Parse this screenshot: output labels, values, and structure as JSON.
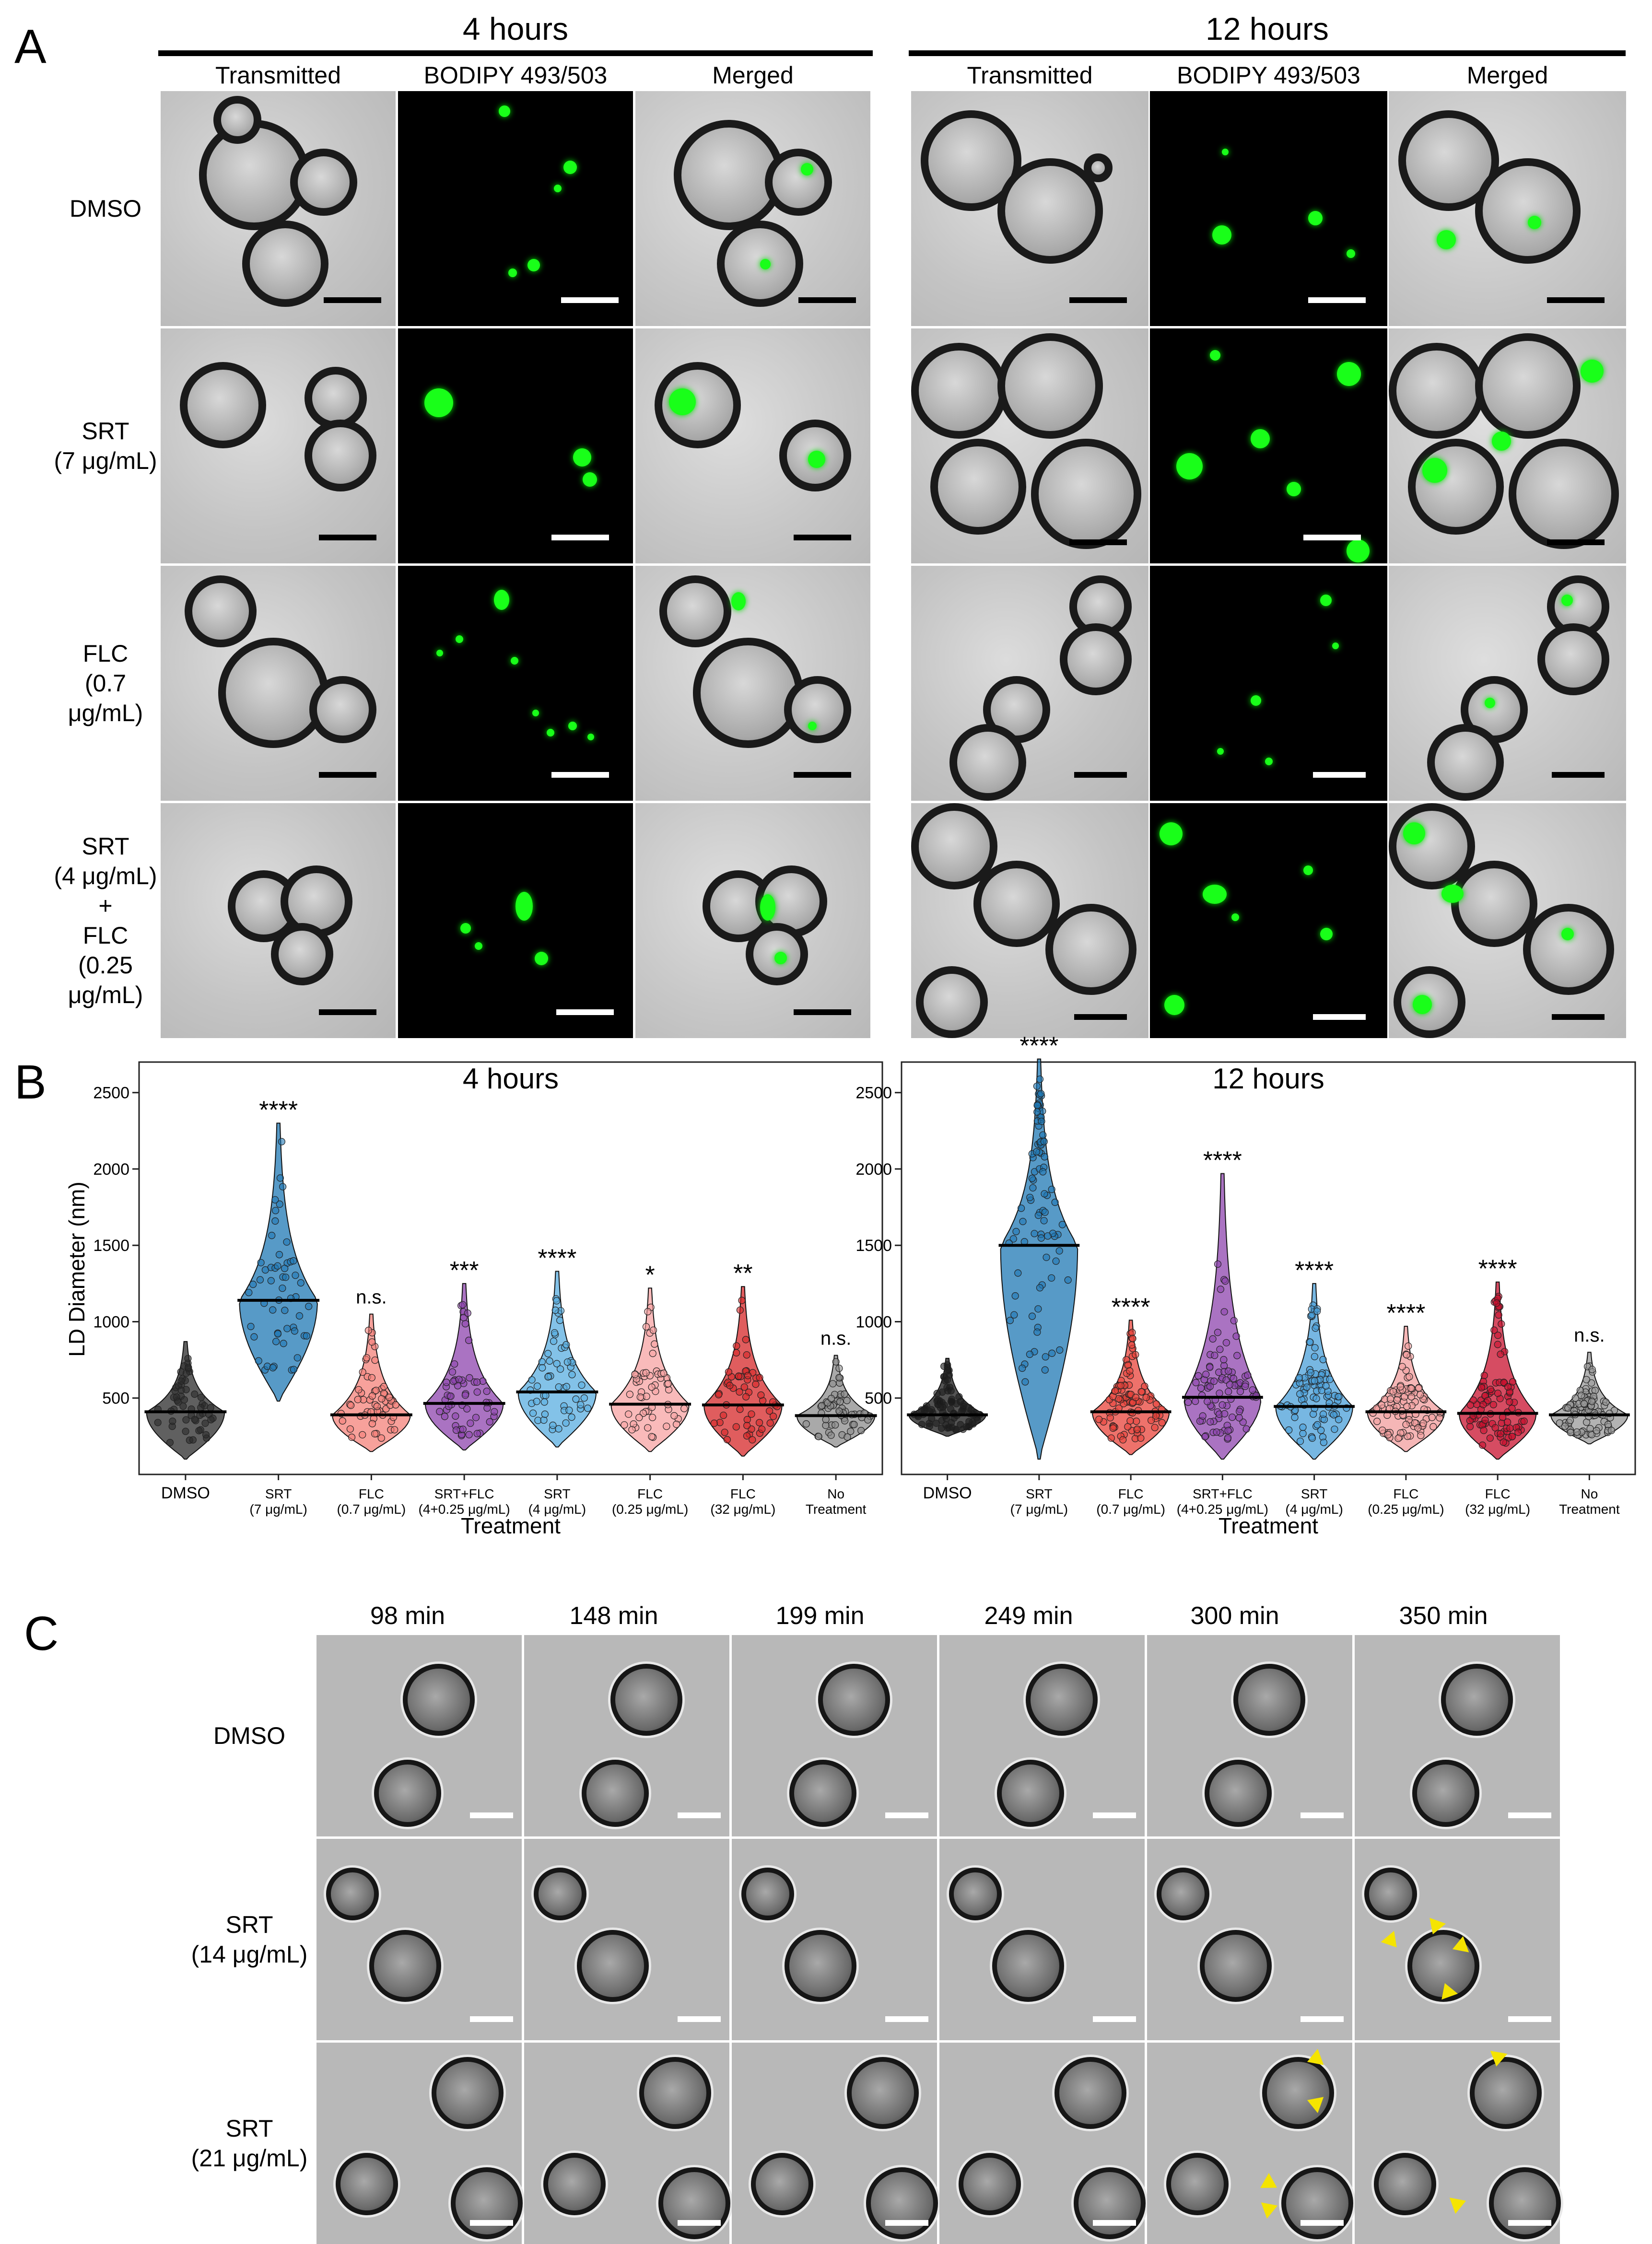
{
  "panel_a": {
    "letter": "A",
    "groups": [
      {
        "time": "4 hours",
        "channels": [
          "Transmitted",
          "BODIPY 493/503",
          "Merged"
        ]
      },
      {
        "time": "12 hours",
        "channels": [
          "Transmitted",
          "BODIPY 493/503",
          "Merged"
        ]
      }
    ],
    "rows": [
      {
        "label_lines": [
          "DMSO"
        ]
      },
      {
        "label_lines": [
          "SRT",
          "(7 μg/mL)"
        ]
      },
      {
        "label_lines": [
          "FLC",
          "(0.7 μg/mL)"
        ]
      },
      {
        "label_lines": [
          "SRT",
          "(4 μg/mL)",
          "+",
          "FLC",
          "(0.25 μg/mL)"
        ]
      }
    ]
  },
  "panel_b": {
    "letter": "B",
    "significance_4h": [
      "",
      "****",
      "n.s.",
      "***",
      "****",
      "*",
      "**",
      "n.s."
    ],
    "significance_12h": [
      "",
      "****",
      "****",
      "****",
      "****",
      "****",
      "****",
      "n.s."
    ]
  },
  "chart_data": [
    {
      "type": "violin",
      "title": "4 hours",
      "xlabel": "Treatment",
      "ylabel": "LD Diameter (nm)",
      "ylim": [
        0,
        2700
      ],
      "yticks": [
        500,
        1000,
        1500,
        2000,
        2500
      ],
      "categories": [
        "DMSO",
        "SRT (7 μg/mL)",
        "FLC (0.7 μg/mL)",
        "SRT+FLC (4+0.25 μg/mL)",
        "SRT (4 μg/mL)",
        "FLC (0.25 μg/mL)",
        "FLC (32 μg/mL)",
        "No Treatment"
      ],
      "category_lines": [
        [
          "DMSO"
        ],
        [
          "SRT",
          "(7 μg/mL)"
        ],
        [
          "FLC",
          "(0.7 μg/mL)"
        ],
        [
          "SRT+FLC",
          "(4+0.25 μg/mL)"
        ],
        [
          "SRT",
          "(4 μg/mL)"
        ],
        [
          "FLC",
          "(0.25 μg/mL)"
        ],
        [
          "FLC",
          "(32 μg/mL)"
        ],
        [
          "No",
          "Treatment"
        ]
      ],
      "medians": [
        410,
        1140,
        390,
        465,
        540,
        460,
        455,
        385
      ],
      "min": [
        100,
        480,
        150,
        160,
        180,
        150,
        120,
        180
      ],
      "max": [
        870,
        2300,
        1050,
        1250,
        1330,
        1220,
        1230,
        780
      ],
      "colors": [
        "#2b2b2b",
        "#1f78b4",
        "#f4817a",
        "#8e44ad",
        "#5aaee0",
        "#f7a3a3",
        "#d62728",
        "#8c8c8c"
      ]
    },
    {
      "type": "violin",
      "title": "12 hours",
      "xlabel": "Treatment",
      "ylabel": "",
      "ylim": [
        0,
        2700
      ],
      "yticks": [
        500,
        1000,
        1500,
        2000,
        2500
      ],
      "categories": [
        "DMSO",
        "SRT (7 μg/mL)",
        "FLC (0.7 μg/mL)",
        "SRT+FLC (4+0.25 μg/mL)",
        "SRT (4 μg/mL)",
        "FLC (0.25 μg/mL)",
        "FLC (32 μg/mL)",
        "No Treatment"
      ],
      "category_lines": [
        [
          "DMSO"
        ],
        [
          "SRT",
          "(7 μg/mL)"
        ],
        [
          "FLC",
          "(0.7 μg/mL)"
        ],
        [
          "SRT+FLC",
          "(4+0.25 μg/mL)"
        ],
        [
          "SRT",
          "(4 μg/mL)"
        ],
        [
          "FLC",
          "(0.25 μg/mL)"
        ],
        [
          "FLC",
          "(32 μg/mL)"
        ],
        [
          "No",
          "Treatment"
        ]
      ],
      "medians": [
        390,
        1500,
        410,
        505,
        445,
        410,
        400,
        390
      ],
      "min": [
        250,
        100,
        130,
        100,
        100,
        150,
        100,
        200
      ],
      "max": [
        760,
        2720,
        1010,
        1970,
        1250,
        970,
        1260,
        800
      ],
      "colors": [
        "#1a1a1a",
        "#1f78b4",
        "#e8433a",
        "#8e44ad",
        "#4a9fd8",
        "#f29e9e",
        "#c8102e",
        "#9a9a9a"
      ]
    }
  ],
  "panel_c": {
    "letter": "C",
    "times": [
      "98 min",
      "148 min",
      "199 min",
      "249 min",
      "300 min",
      "350 min"
    ],
    "rows": [
      {
        "label_lines": [
          "DMSO"
        ]
      },
      {
        "label_lines": [
          "SRT",
          "(14 μg/mL)"
        ]
      },
      {
        "label_lines": [
          "SRT",
          "(21 μg/mL)"
        ]
      }
    ]
  }
}
